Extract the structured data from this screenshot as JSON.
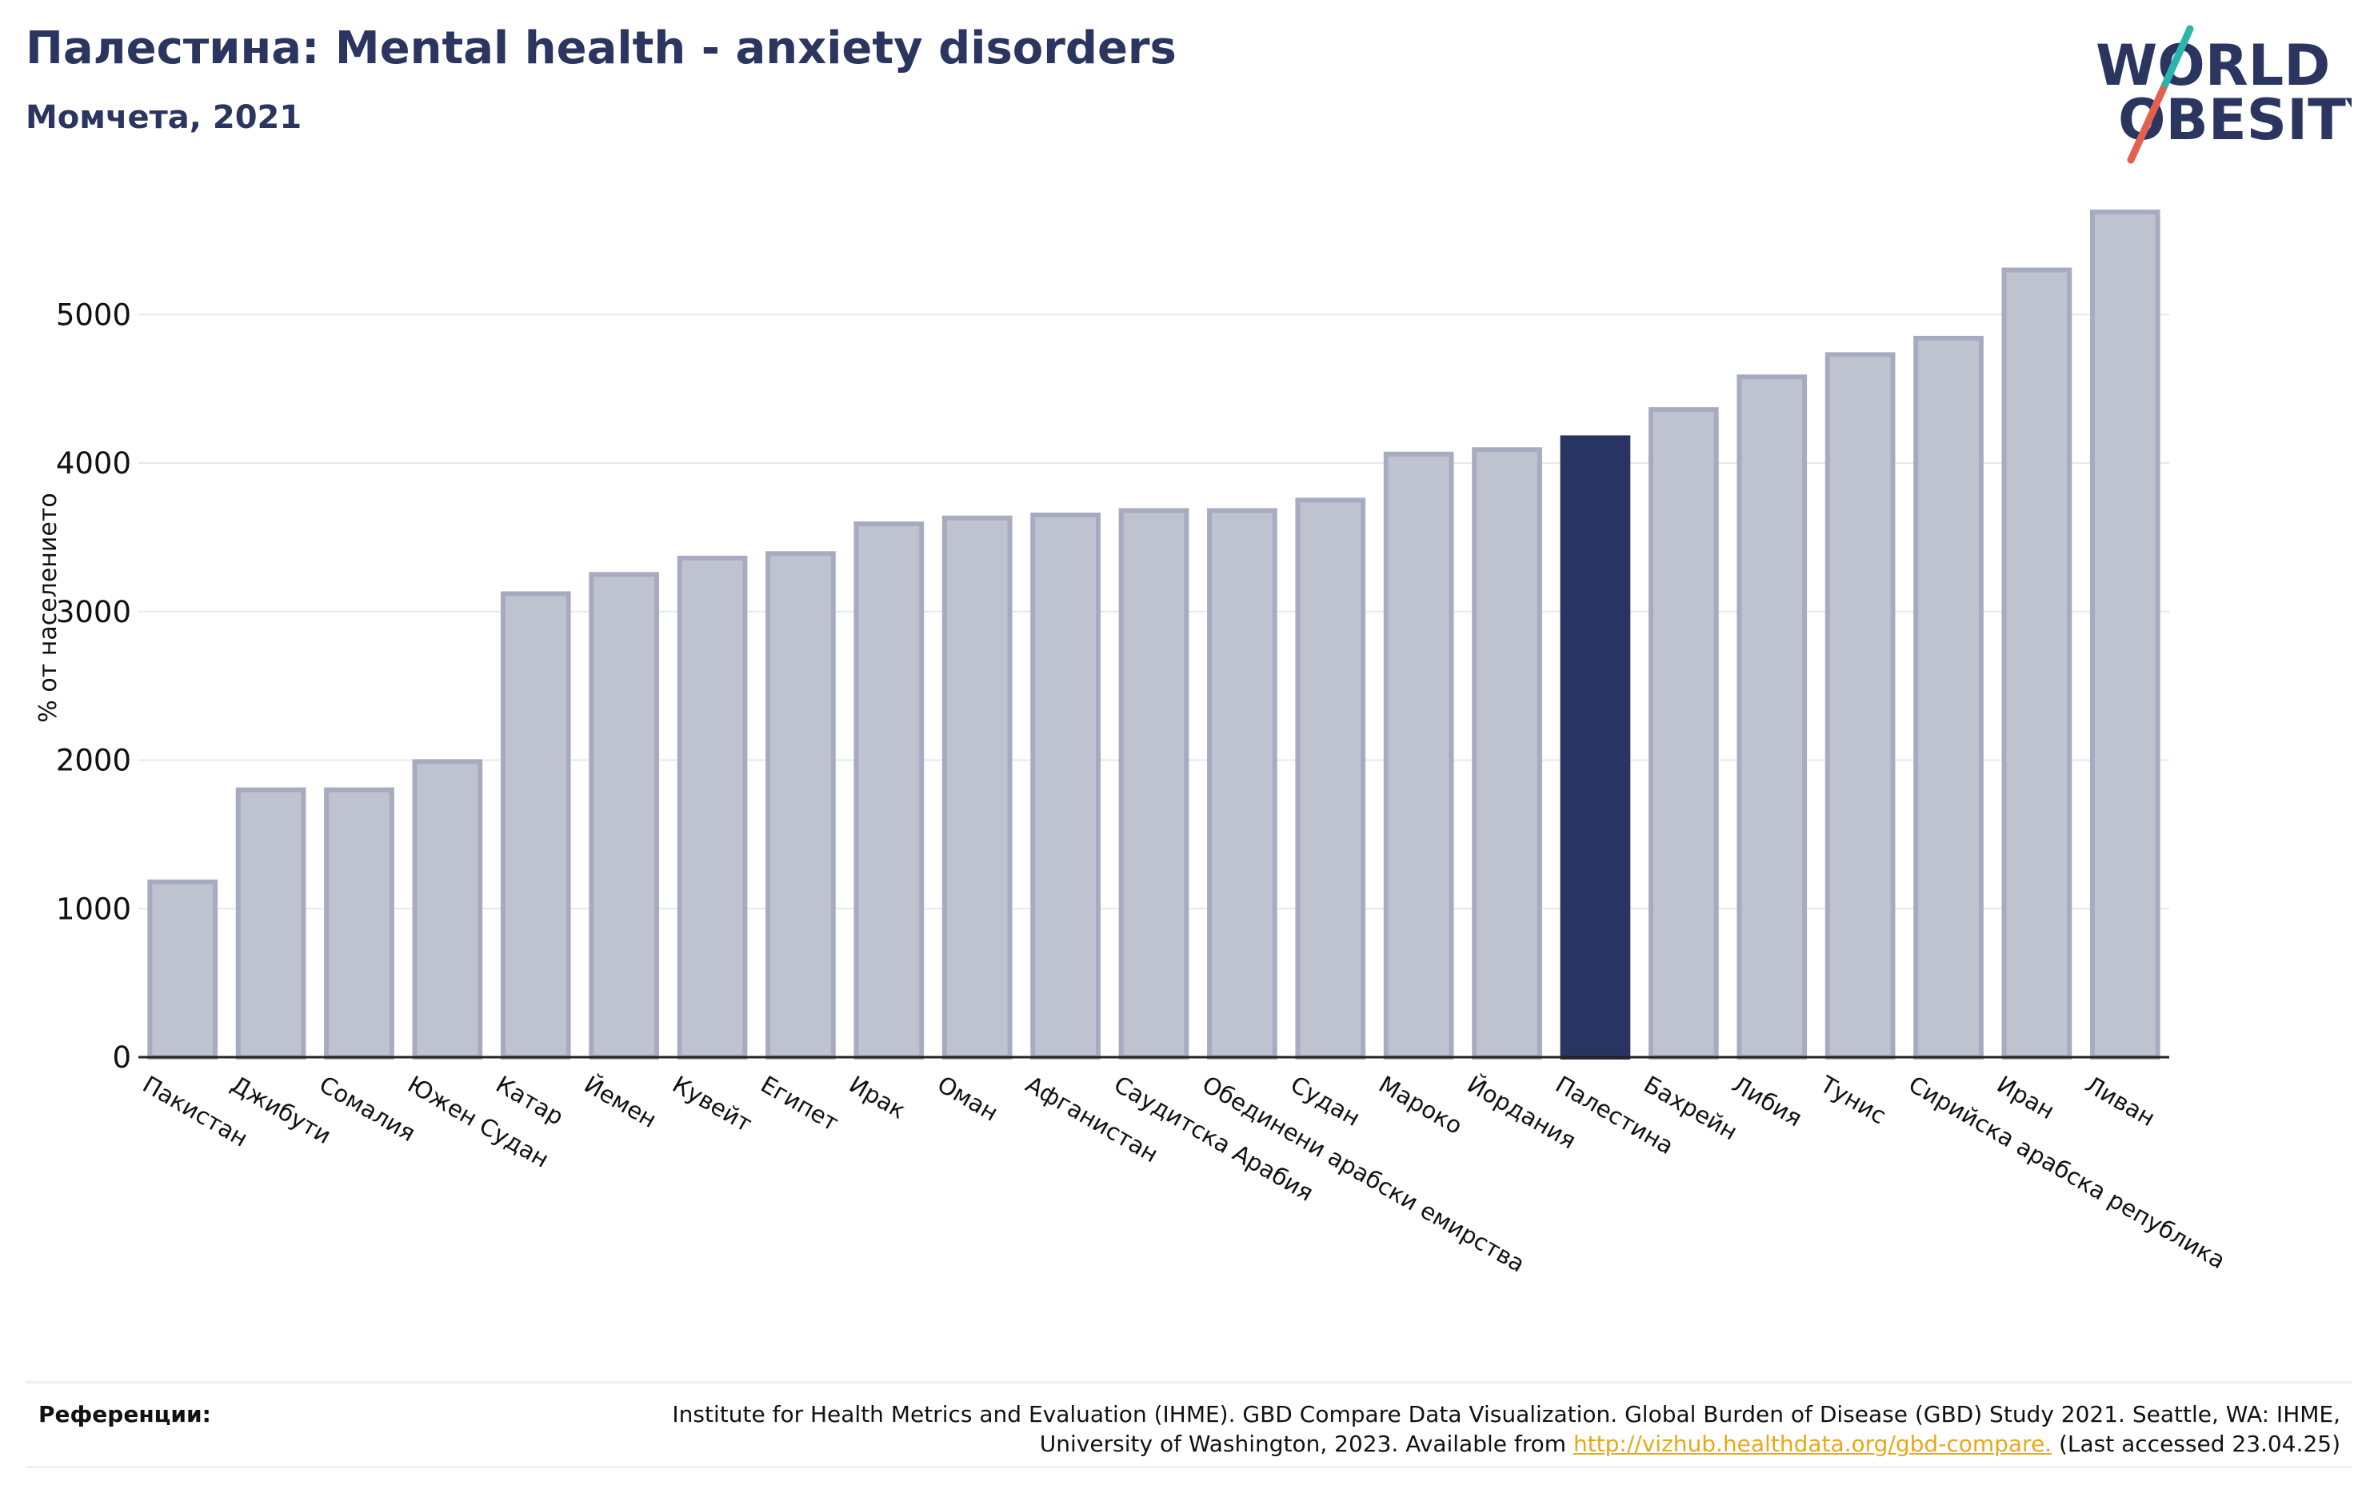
{
  "header": {
    "title": "Палестина: Mental health - anxiety disorders",
    "subtitle": "Момчета, 2021"
  },
  "logo": {
    "line1": "WORLD",
    "line2": "OBESITY"
  },
  "colors": {
    "highlight": "#283462",
    "bar_fill": "#bfc3d0",
    "bar_edge": "#a6abc0",
    "brand_teal": "#2bb5ae",
    "brand_red": "#e3604f"
  },
  "chart_data": {
    "type": "bar",
    "title": "Палестина: Mental health - anxiety disorders",
    "subtitle": "Момчета, 2021",
    "xlabel": "",
    "ylabel": "% от населението",
    "ylim": [
      0,
      5900
    ],
    "yticks": [
      0,
      1000,
      2000,
      3000,
      4000,
      5000
    ],
    "grid": true,
    "highlight": "Палестина",
    "categories": [
      "Пакистан",
      "Джибути",
      "Сомалия",
      "Южен Судан",
      "Катар",
      "Йемен",
      "Кувейт",
      "Египет",
      "Ирак",
      "Оман",
      "Афганистан",
      "Саудитска Арабия",
      "Обединени арабски емирства",
      "Судан",
      "Мароко",
      "Йордания",
      "Палестина",
      "Бахрейн",
      "Либия",
      "Тунис",
      "Сирийска арабска република",
      "Иран",
      "Ливан"
    ],
    "values": [
      1180,
      1800,
      1800,
      1990,
      3120,
      3250,
      3360,
      3390,
      3590,
      3630,
      3650,
      3680,
      3680,
      3750,
      4060,
      4090,
      4170,
      4360,
      4580,
      4730,
      4840,
      5300,
      5690
    ]
  },
  "references": {
    "label": "Референции:",
    "text_before": "Institute for Health Metrics and Evaluation (IHME). GBD Compare Data Visualization. Global Burden of Disease (GBD) Study 2021. Seattle, WA: IHME, University of Washington, 2023. Available from",
    "link": "http://vizhub.healthdata.org/gbd-compare.",
    "text_after": "(Last accessed 23.04.25)"
  }
}
